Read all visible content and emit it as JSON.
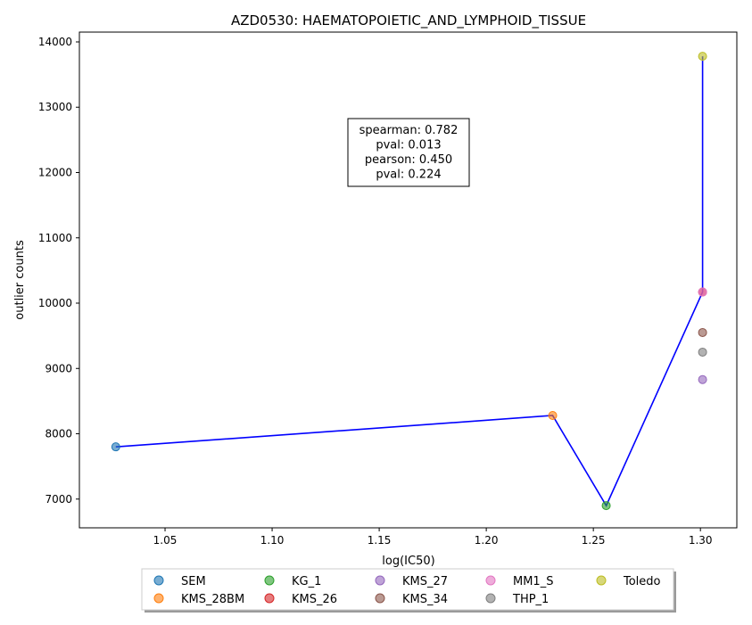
{
  "chart_data": {
    "type": "scatter",
    "title": "AZD0530: HAEMATOPOIETIC_AND_LYMPHOID_TISSUE",
    "xlabel": "log(IC50)",
    "ylabel": "outlier counts",
    "xlim": [
      1.01,
      1.317
    ],
    "ylim": [
      6560,
      14150
    ],
    "xticks": [
      "1.05",
      "1.10",
      "1.15",
      "1.20",
      "1.25",
      "1.30"
    ],
    "yticks": [
      "7000",
      "8000",
      "9000",
      "10000",
      "11000",
      "12000",
      "13000",
      "14000"
    ],
    "grid": false,
    "legend_position": "below plot",
    "line_color": "#0000ff",
    "series": [
      {
        "name": "SEM",
        "color": "#1f77b4",
        "x": 1.027,
        "y": 7800
      },
      {
        "name": "KMS_28BM",
        "color": "#ff7f0e",
        "x": 1.231,
        "y": 8280
      },
      {
        "name": "KG_1",
        "color": "#2ca02c",
        "x": 1.256,
        "y": 6900
      },
      {
        "name": "KMS_26",
        "color": "#d62728",
        "x": 1.301,
        "y": 10170
      },
      {
        "name": "KMS_27",
        "color": "#9467bd",
        "x": 1.301,
        "y": 8830
      },
      {
        "name": "KMS_34",
        "color": "#8c564b",
        "x": 1.301,
        "y": 9550
      },
      {
        "name": "MM1_S",
        "color": "#e377c2",
        "x": 1.301,
        "y": 10170
      },
      {
        "name": "THP_1",
        "color": "#7f7f7f",
        "x": 1.301,
        "y": 9250
      },
      {
        "name": "Toledo",
        "color": "#bcbd22",
        "x": 1.301,
        "y": 13780
      }
    ],
    "line_order": [
      "SEM",
      "KMS_28BM",
      "KG_1",
      "MM1_S",
      "Toledo"
    ],
    "annotation": {
      "lines": [
        "spearman: 0.782",
        "pval: 0.013",
        "pearson: 0.450",
        "pval: 0.224"
      ]
    }
  }
}
